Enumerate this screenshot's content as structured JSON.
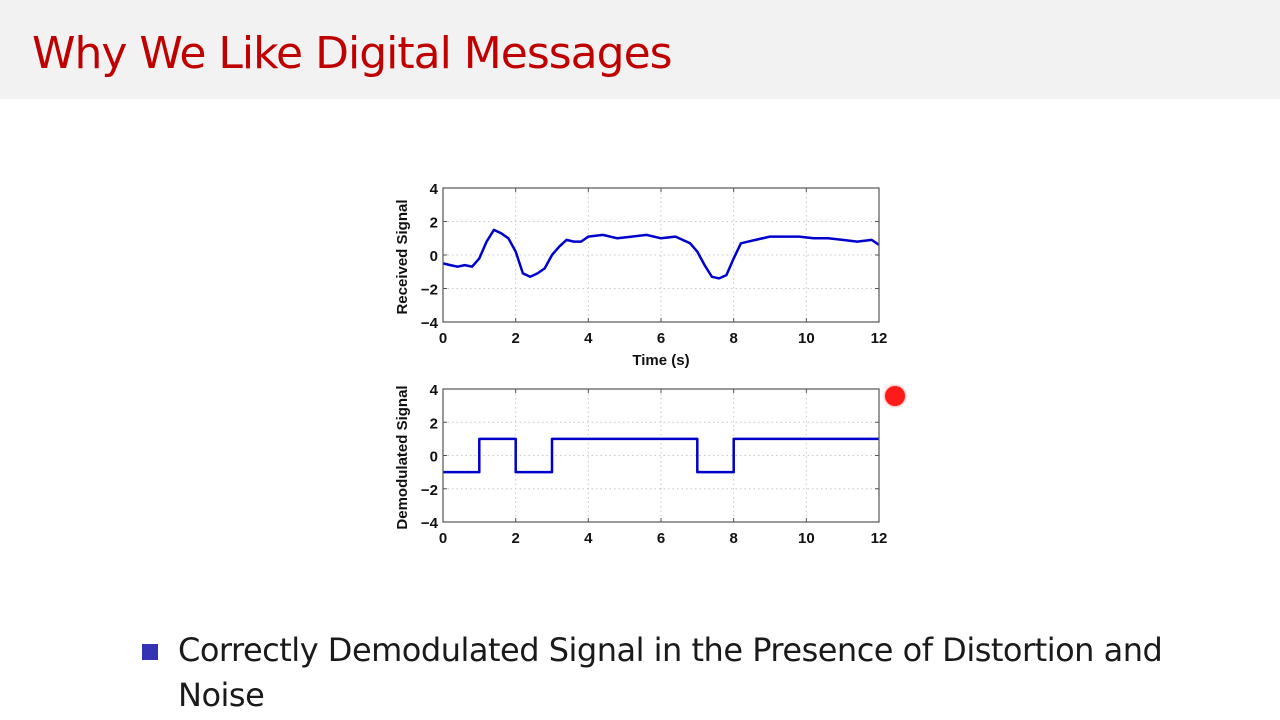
{
  "slide": {
    "title": "Why We Like Digital Messages",
    "bullets": [
      {
        "text": "Correctly Demodulated Signal in the Presence of Distortion and Noise"
      }
    ],
    "colors": {
      "title": "#c00000",
      "header_bg": "#f2f2f2",
      "bullet": "#3333b3",
      "line": "#0000cc",
      "pointer": "#ff1a1a"
    }
  },
  "chart_data": [
    {
      "type": "line",
      "title": "",
      "xlabel": "Time (s)",
      "ylabel": "Received Signal",
      "xlim": [
        0,
        12
      ],
      "ylim": [
        -4,
        4
      ],
      "xticks": [
        "0",
        "2",
        "4",
        "6",
        "8",
        "10",
        "12"
      ],
      "yticks": [
        "4",
        "2",
        "0",
        "−2",
        "−4"
      ],
      "grid": true,
      "x": [
        0,
        0.2,
        0.4,
        0.6,
        0.8,
        1.0,
        1.2,
        1.4,
        1.6,
        1.8,
        2.0,
        2.2,
        2.4,
        2.6,
        2.8,
        3.0,
        3.2,
        3.4,
        3.6,
        3.8,
        4.0,
        4.4,
        4.8,
        5.2,
        5.6,
        6.0,
        6.4,
        6.8,
        7.0,
        7.2,
        7.4,
        7.6,
        7.8,
        8.0,
        8.2,
        8.6,
        9.0,
        9.4,
        9.8,
        10.2,
        10.6,
        11.0,
        11.4,
        11.8,
        12.0
      ],
      "values": [
        -0.5,
        -0.6,
        -0.7,
        -0.6,
        -0.7,
        -0.2,
        0.8,
        1.5,
        1.3,
        1.0,
        0.2,
        -1.1,
        -1.3,
        -1.1,
        -0.8,
        0,
        0.5,
        0.9,
        0.8,
        0.8,
        1.1,
        1.2,
        1.0,
        1.1,
        1.2,
        1.0,
        1.1,
        0.7,
        0.2,
        -0.6,
        -1.3,
        -1.4,
        -1.2,
        -0.2,
        0.7,
        0.9,
        1.1,
        1.1,
        1.1,
        1.0,
        1.0,
        0.9,
        0.8,
        0.9,
        0.6
      ],
      "series": [
        {
          "name": "Received Signal",
          "color": "#0000cc"
        }
      ]
    },
    {
      "type": "line",
      "title": "",
      "xlabel": "",
      "ylabel": "Demodulated Signal",
      "xlim": [
        0,
        12
      ],
      "ylim": [
        -4,
        4
      ],
      "xticks": [
        "0",
        "2",
        "4",
        "6",
        "8",
        "10",
        "12"
      ],
      "yticks": [
        "4",
        "2",
        "0",
        "−2",
        "−4"
      ],
      "grid": true,
      "x": [
        0,
        1,
        1,
        2,
        2,
        3,
        3,
        7,
        7,
        8,
        8,
        12
      ],
      "values": [
        -1,
        -1,
        1,
        1,
        -1,
        -1,
        1,
        1,
        -1,
        -1,
        1,
        1
      ],
      "series": [
        {
          "name": "Demodulated Signal",
          "color": "#0000cc"
        }
      ]
    }
  ]
}
